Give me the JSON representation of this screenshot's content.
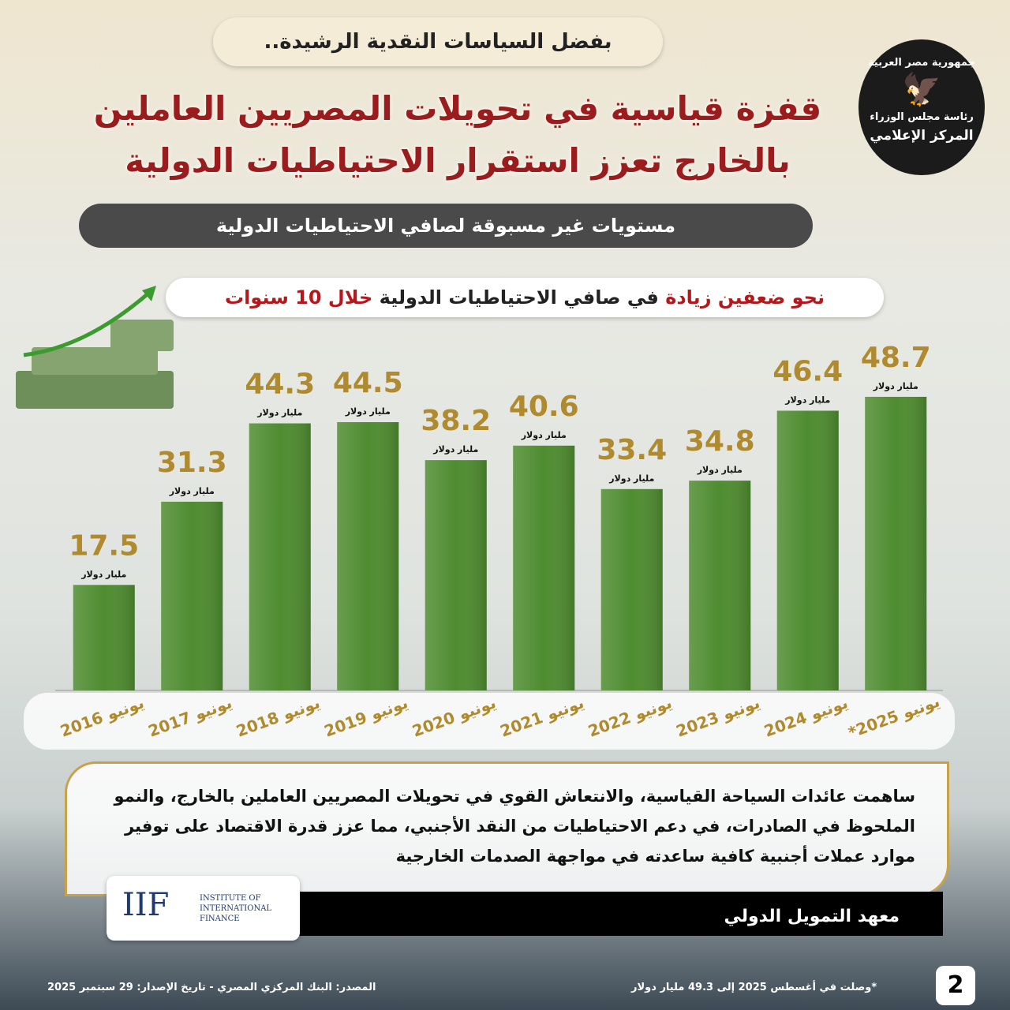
{
  "header": {
    "tag": "بفضل السياسات النقدية الرشيدة..",
    "title_lines": [
      "قفزة قياسية في تحويلات المصريين العاملين",
      "بالخارج تعزز استقرار الاحتياطيات الدولية"
    ],
    "subtitle": "مستويات غير مسبوقة لصافي الاحتياطيات الدولية"
  },
  "logo": {
    "lines": [
      "جمهورية مصر العربية",
      "رئاسة مجلس الوزراء",
      "المركز الإعلامي"
    ]
  },
  "chart_data": {
    "type": "bar",
    "title_parts": [
      "نحو ضعفين زيادة",
      "في صافي الاحتياطيات الدولية",
      "خلال 10 سنوات"
    ],
    "categories": [
      "يونيو 2016",
      "يونيو 2017",
      "يونيو 2018",
      "يونيو 2019",
      "يونيو 2020",
      "يونيو 2021",
      "يونيو 2022",
      "يونيو 2023",
      "يونيو 2024",
      "يونيو 2025*"
    ],
    "values": [
      17.5,
      31.3,
      44.3,
      44.5,
      38.2,
      40.6,
      33.4,
      34.8,
      46.4,
      48.7
    ],
    "value_unit": "مليار دولار",
    "color": "#4f8c30",
    "ylim": [
      0,
      50
    ]
  },
  "note": {
    "paragraph_lines": [
      "ساهمت عائدات السياحة القياسية، والانتعاش القوي في تحويلات المصريين العاملين بالخارج، والنمو",
      "الملحوظ في الصادرات، في دعم الاحتياطيات من النقد الأجنبي، مما عزز قدرة الاقتصاد على توفير",
      "موارد عملات أجنبية كافية ساعدته في مواجهة الصدمات الخارجية"
    ],
    "source_name": "معهد التمويل الدولي"
  },
  "iif_logo": {
    "acronym": "IIF",
    "lines": [
      "INSTITUTE OF",
      "INTERNATIONAL",
      "FINANCE"
    ]
  },
  "footer": {
    "source": "المصدر: البنك المركزي المصري -  تاريخ الإصدار: 29 سبتمبر 2025",
    "footnote": "*وصلت في أغسطس 2025 إلى 49.3 مليار دولار",
    "page_number": "2"
  }
}
